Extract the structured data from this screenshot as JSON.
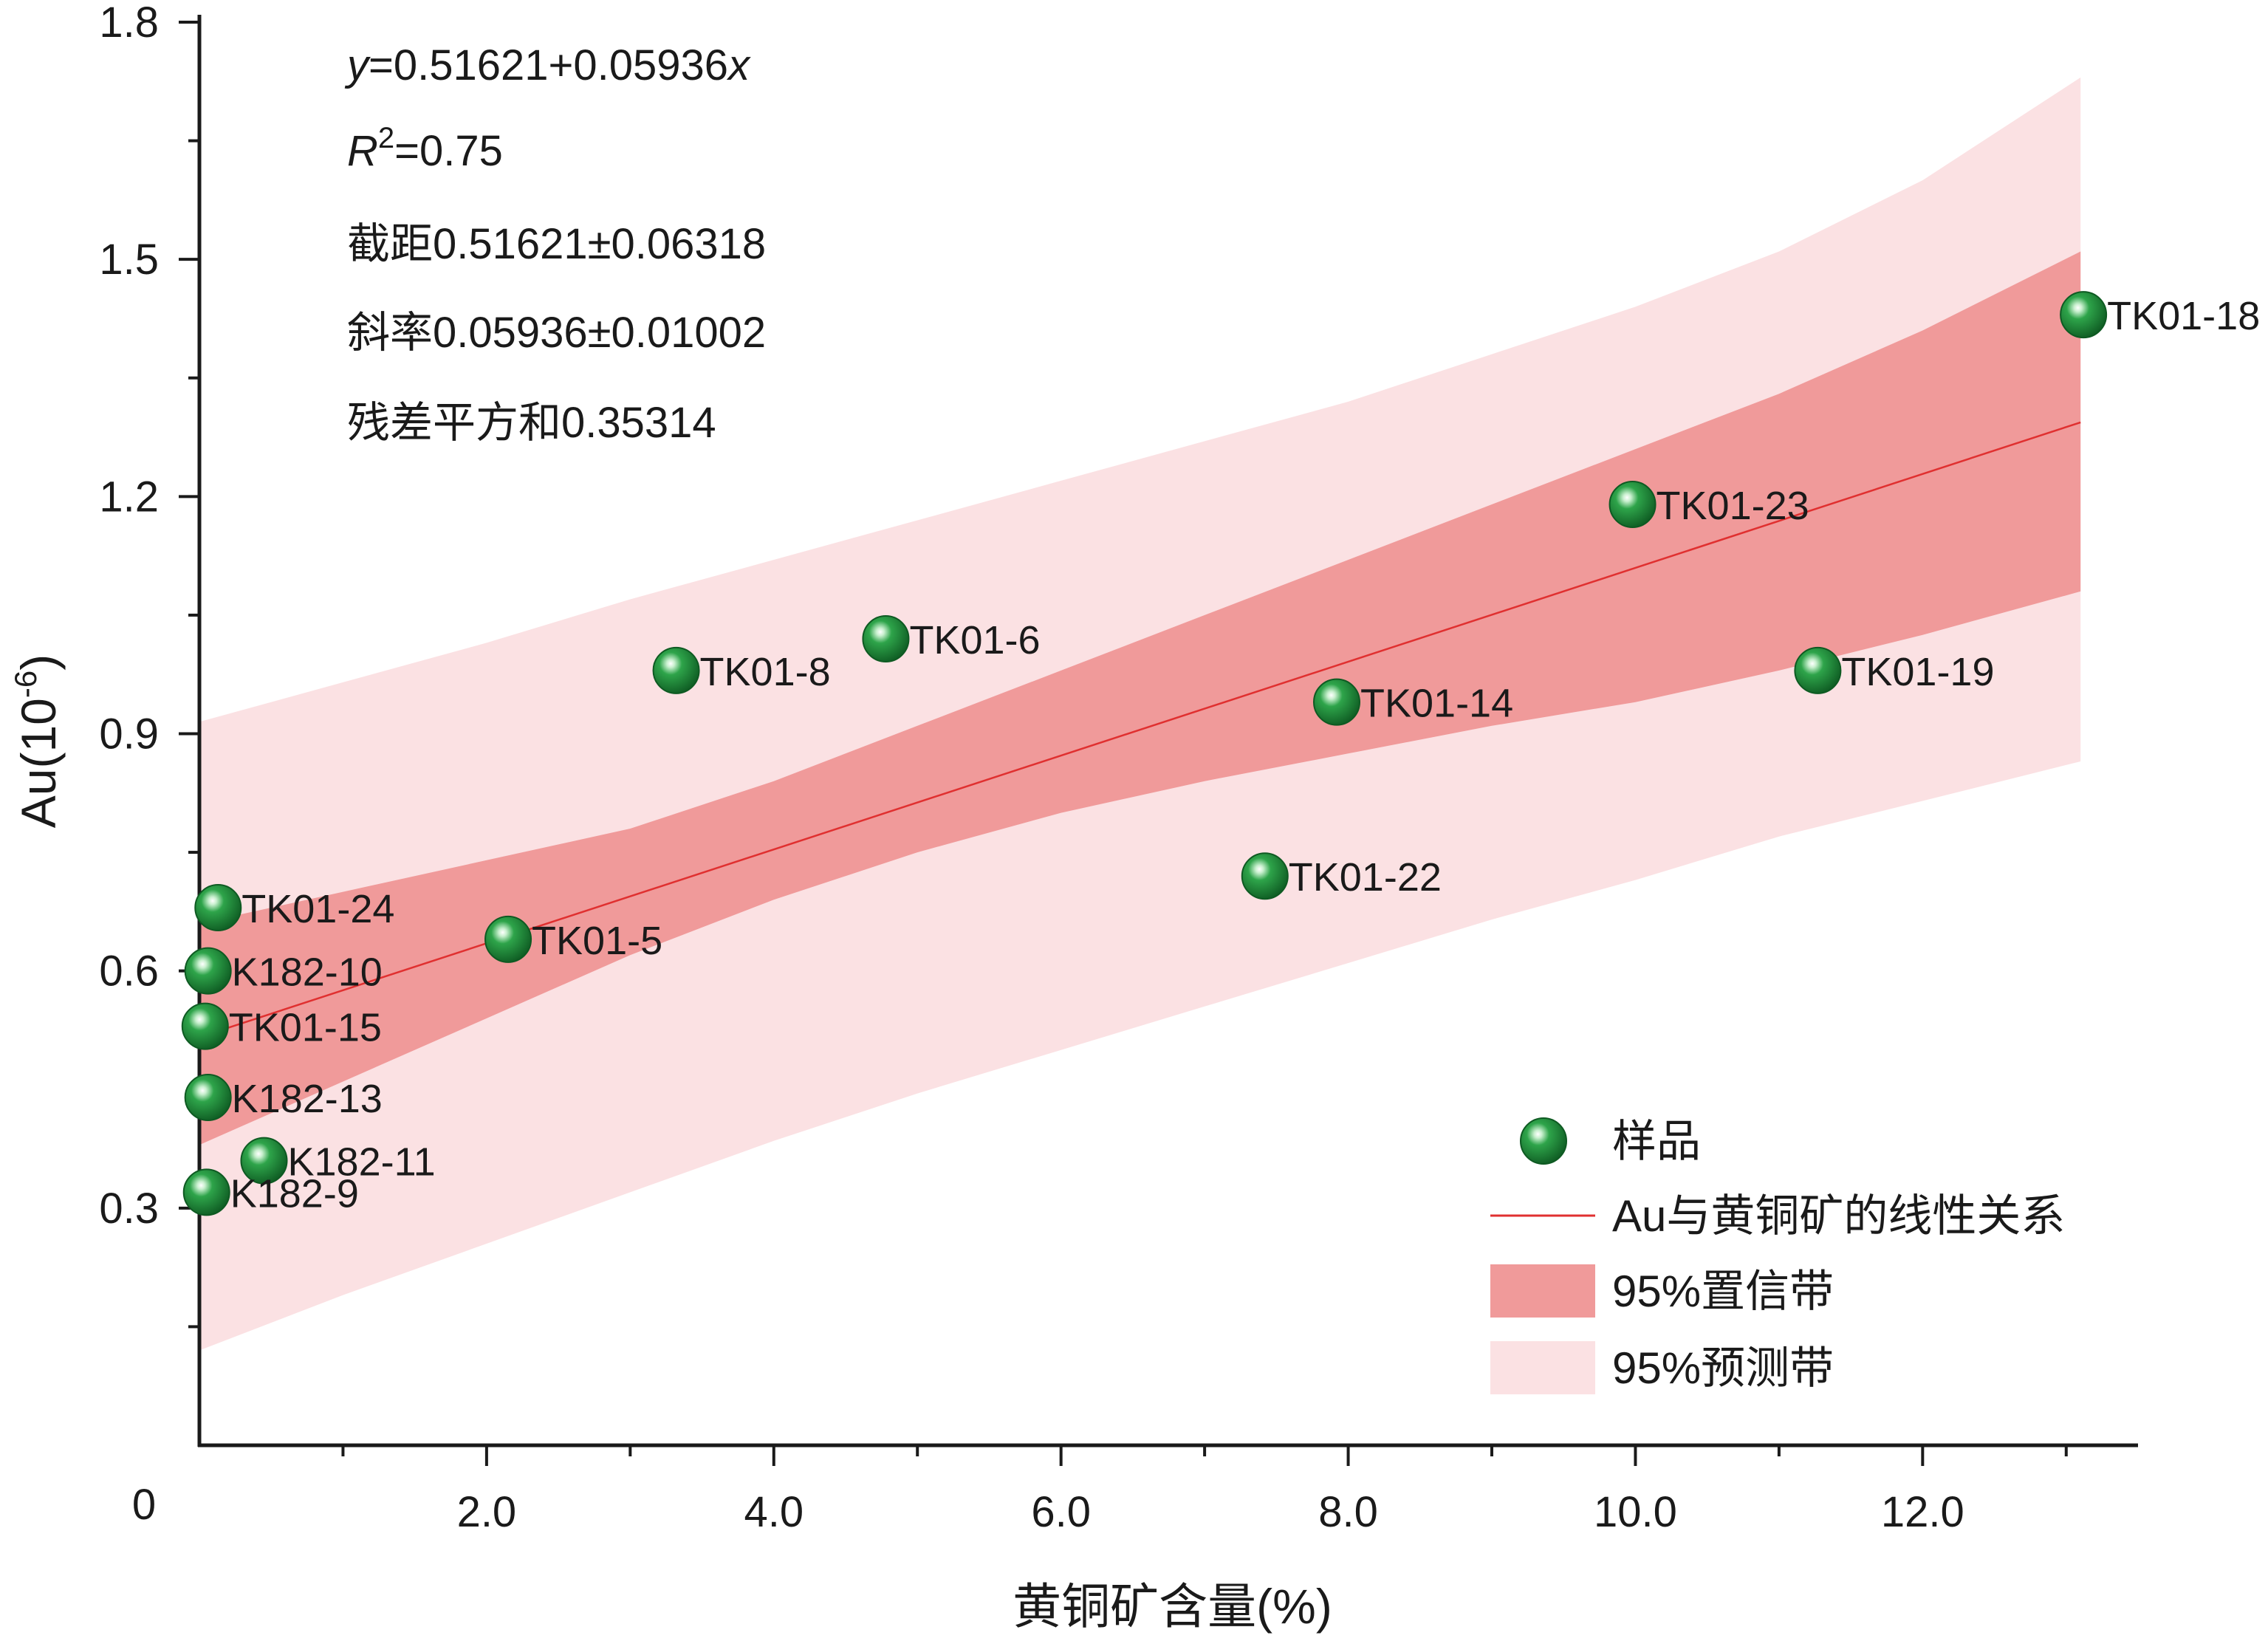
{
  "chart_data": {
    "type": "scatter",
    "xlabel": "黄铜矿含量(%)",
    "ylabel_main": "Au(10",
    "ylabel_sup": "-6",
    "ylabel_close": ")",
    "origin_label": "0",
    "xlim": [
      0,
      13.5
    ],
    "ylim": [
      0,
      1.8
    ],
    "x_ticks": [
      {
        "v": 2.0,
        "label": "2.0"
      },
      {
        "v": 4.0,
        "label": "4.0"
      },
      {
        "v": 6.0,
        "label": "6.0"
      },
      {
        "v": 8.0,
        "label": "8.0"
      },
      {
        "v": 10.0,
        "label": "10.0"
      },
      {
        "v": 12.0,
        "label": "12.0"
      }
    ],
    "x_minor_ticks": [
      1.0,
      3.0,
      5.0,
      7.0,
      9.0,
      11.0,
      13.0
    ],
    "y_ticks": [
      {
        "v": 0.3,
        "label": "0.3"
      },
      {
        "v": 0.6,
        "label": "0.6"
      },
      {
        "v": 0.9,
        "label": "0.9"
      },
      {
        "v": 1.2,
        "label": "1.2"
      },
      {
        "v": 1.5,
        "label": "1.5"
      },
      {
        "v": 1.8,
        "label": "1.8"
      }
    ],
    "y_minor_ticks": [
      0.15,
      0.45,
      0.75,
      1.05,
      1.35,
      1.65
    ],
    "points": [
      {
        "x": 13.12,
        "y": 1.43,
        "label": "TK01-18"
      },
      {
        "x": 9.98,
        "y": 1.19,
        "label": "TK01-23"
      },
      {
        "x": 11.27,
        "y": 0.98,
        "label": "TK01-19"
      },
      {
        "x": 7.92,
        "y": 0.94,
        "label": "TK01-14"
      },
      {
        "x": 4.78,
        "y": 1.02,
        "label": "TK01-6"
      },
      {
        "x": 3.32,
        "y": 0.98,
        "label": "TK01-8"
      },
      {
        "x": 7.42,
        "y": 0.72,
        "label": "TK01-22"
      },
      {
        "x": 0.13,
        "y": 0.68,
        "label": "TK01-24"
      },
      {
        "x": 2.15,
        "y": 0.64,
        "label": "TK01-5"
      },
      {
        "x": 0.06,
        "y": 0.6,
        "label": "K182-10"
      },
      {
        "x": 0.04,
        "y": 0.53,
        "label": "TK01-15"
      },
      {
        "x": 0.06,
        "y": 0.44,
        "label": "K182-13"
      },
      {
        "x": 0.45,
        "y": 0.36,
        "label": "K182-11"
      },
      {
        "x": 0.05,
        "y": 0.32,
        "label": "K182-9"
      }
    ],
    "fit": {
      "intercept": 0.51621,
      "slope": 0.05936
    },
    "band_x": [
      0.0,
      1.0,
      2.0,
      3.0,
      4.0,
      5.0,
      6.0,
      7.0,
      8.0,
      9.0,
      10.0,
      11.0,
      12.0,
      13.1
    ],
    "confidence_lower": [
      0.38,
      0.46,
      0.54,
      0.62,
      0.69,
      0.75,
      0.8,
      0.84,
      0.875,
      0.91,
      0.94,
      0.98,
      1.025,
      1.08
    ],
    "confidence_upper": [
      0.66,
      0.7,
      0.74,
      0.78,
      0.84,
      0.91,
      0.98,
      1.05,
      1.12,
      1.19,
      1.26,
      1.33,
      1.41,
      1.51
    ],
    "prediction_lower": [
      0.12,
      0.19,
      0.255,
      0.32,
      0.385,
      0.445,
      0.5,
      0.555,
      0.61,
      0.665,
      0.715,
      0.77,
      0.815,
      0.865
    ],
    "prediction_upper": [
      0.915,
      0.965,
      1.015,
      1.07,
      1.12,
      1.17,
      1.22,
      1.27,
      1.32,
      1.38,
      1.44,
      1.51,
      1.6,
      1.73
    ],
    "stats": [
      {
        "italic_prefix": "y",
        "text": "=0.51621+0.05936",
        "italic_suffix": "x"
      },
      {
        "italic_prefix": "R",
        "sup": "2",
        "text": "=0.75"
      },
      {
        "text": "截距0.51621±0.06318"
      },
      {
        "text": "斜率0.05936±0.01002"
      },
      {
        "text": "残差平方和0.35314"
      }
    ],
    "legend": {
      "position": "bottom-right",
      "items": [
        {
          "key": "marker",
          "label": "样品"
        },
        {
          "key": "line",
          "label": "Au与黄铜矿的线性关系"
        },
        {
          "key": "confidence",
          "label": "95%置信带"
        },
        {
          "key": "prediction",
          "label": "95%预测带"
        }
      ]
    },
    "colors": {
      "marker": "#1f8c3a",
      "marker_dark": "#0e5a22",
      "fit_line": "#e03030",
      "confidence_band": "#f09a9a",
      "prediction_band": "#fbe1e3",
      "axis": "#1a1a1a"
    },
    "grid": false
  }
}
